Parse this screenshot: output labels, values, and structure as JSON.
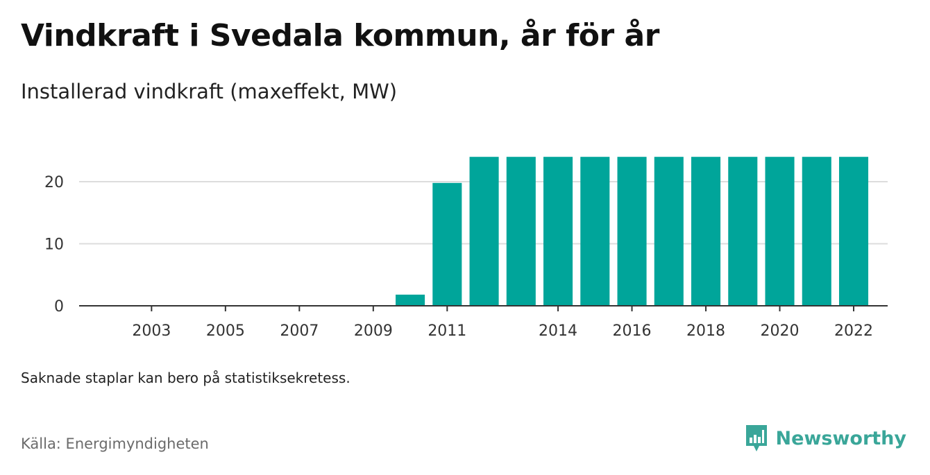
{
  "title": "Vindkraft i Svedala kommun, år för år",
  "subtitle": "Installerad vindkraft (maxeffekt, MW)",
  "note": "Saknade staplar kan bero på statistiksekretess.",
  "source": "Källa: Energimyndigheten",
  "brand": {
    "name": "Newsworthy",
    "logo_icon": "newsworthy-logo-icon",
    "color": "#3aa699"
  },
  "colors": {
    "bar": "#00a59a",
    "grid": "#dddddd",
    "axis": "#333333"
  },
  "chart_data": {
    "type": "bar",
    "categories": [
      "2002",
      "2003",
      "2004",
      "2005",
      "2006",
      "2007",
      "2008",
      "2009",
      "2010",
      "2011",
      "2012",
      "2013",
      "2014",
      "2015",
      "2016",
      "2017",
      "2018",
      "2019",
      "2020",
      "2021",
      "2022"
    ],
    "values": [
      0,
      0,
      0,
      0,
      0,
      0,
      0,
      0,
      1.8,
      19.8,
      24,
      24,
      24,
      24,
      24,
      24,
      24,
      24,
      24,
      24,
      24
    ],
    "x_tick_labels": [
      "2003",
      "2005",
      "2007",
      "2009",
      "2011",
      "2014",
      "2016",
      "2018",
      "2020",
      "2022"
    ],
    "y_ticks": [
      0,
      10,
      20
    ],
    "ylim": [
      0,
      24
    ],
    "grid": true,
    "xlabel": "",
    "ylabel": ""
  }
}
